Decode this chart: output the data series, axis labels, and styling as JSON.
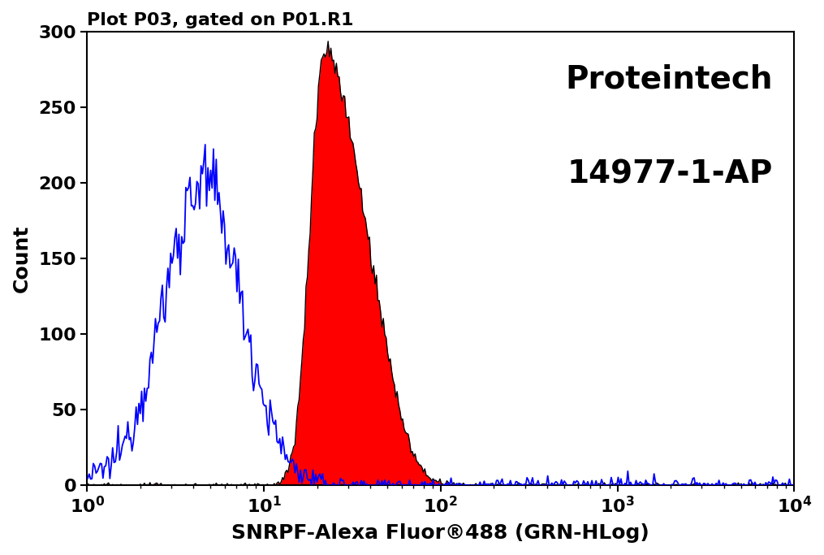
{
  "title": "Plot P03, gated on P01.R1",
  "xlabel": "SNRPF-Alexa Fluor®488 (GRN-HLog)",
  "ylabel": "Count",
  "brand_line1": "Proteintech",
  "brand_line2": "14977-1-AP",
  "xlim_log": [
    1.0,
    10000.0
  ],
  "ylim": [
    0,
    300
  ],
  "yticks": [
    0,
    50,
    100,
    150,
    200,
    250,
    300
  ],
  "background_color": "#ffffff",
  "blue_color": "#0000ff",
  "red_color": "#ff0000",
  "black_color": "#000000",
  "blue_peak_x_log10": 0.65,
  "blue_peak_count": 200,
  "red_peak_x_log10": 1.34,
  "red_peak_count": 288,
  "title_fontsize": 16,
  "label_fontsize": 18,
  "tick_fontsize": 16,
  "brand_fontsize": 28
}
